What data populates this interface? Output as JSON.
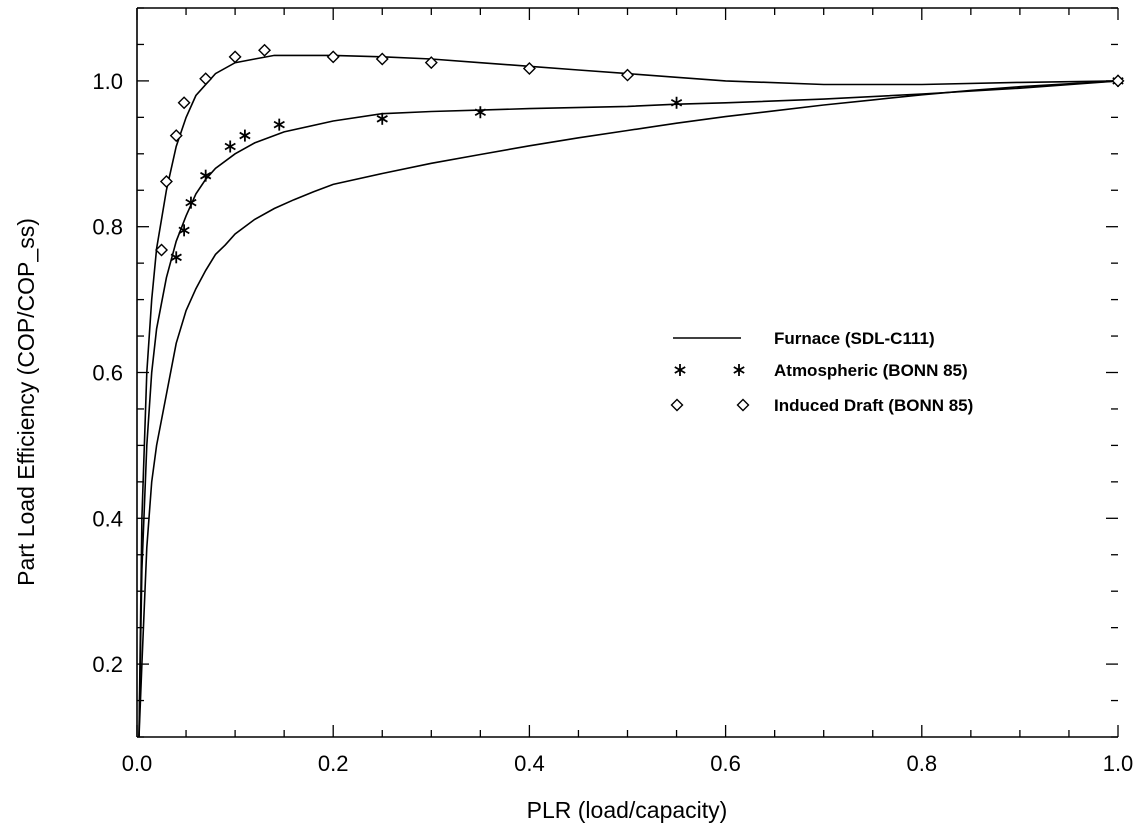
{
  "chart_data": {
    "type": "line",
    "title": "",
    "xlabel": "PLR (load/capacity)",
    "ylabel": "Part Load Efficiency (COP/COP_ss)",
    "xlim": [
      0.0,
      1.0
    ],
    "ylim": [
      0.1,
      1.1
    ],
    "x_ticks": [
      "0.0",
      "0.2",
      "0.4",
      "0.6",
      "0.8",
      "1.0"
    ],
    "y_ticks": [
      "0.2",
      "0.4",
      "0.6",
      "0.8",
      "1.0"
    ],
    "grid": false,
    "legend_position": "center-right",
    "legend": [
      {
        "label": "Furnace (SDL-C111)",
        "symbol": "line"
      },
      {
        "label": "Atmospheric (BONN 85)",
        "symbol": "star"
      },
      {
        "label": "Induced Draft (BONN 85)",
        "symbol": "diamond"
      }
    ],
    "series": [
      {
        "style": "line",
        "x": [
          0.002,
          0.005,
          0.01,
          0.015,
          0.02,
          0.03,
          0.04,
          0.05,
          0.06,
          0.07,
          0.08,
          0.09,
          0.1,
          0.12,
          0.14,
          0.16,
          0.18,
          0.2,
          0.25,
          0.3,
          0.35,
          0.4,
          0.45,
          0.5,
          0.55,
          0.6,
          0.65,
          0.7,
          0.75,
          0.8,
          0.85,
          0.9,
          0.95,
          1.0
        ],
        "y": [
          0.1,
          0.2,
          0.36,
          0.45,
          0.5,
          0.57,
          0.64,
          0.685,
          0.715,
          0.74,
          0.762,
          0.775,
          0.79,
          0.81,
          0.825,
          0.837,
          0.848,
          0.858,
          0.873,
          0.887,
          0.899,
          0.911,
          0.922,
          0.932,
          0.942,
          0.951,
          0.959,
          0.967,
          0.974,
          0.981,
          0.987,
          0.992,
          0.996,
          1.0
        ]
      },
      {
        "style": "line",
        "x": [
          0.002,
          0.005,
          0.01,
          0.015,
          0.02,
          0.03,
          0.04,
          0.05,
          0.06,
          0.07,
          0.08,
          0.1,
          0.12,
          0.15,
          0.2,
          0.25,
          0.3,
          0.35,
          0.4,
          0.5,
          0.55,
          0.6,
          0.7,
          0.8,
          0.9,
          1.0
        ],
        "y": [
          0.1,
          0.33,
          0.5,
          0.6,
          0.66,
          0.73,
          0.78,
          0.815,
          0.845,
          0.865,
          0.88,
          0.9,
          0.915,
          0.93,
          0.945,
          0.955,
          0.958,
          0.96,
          0.962,
          0.965,
          0.968,
          0.97,
          0.975,
          0.982,
          0.99,
          1.0
        ]
      },
      {
        "style": "line",
        "x": [
          0.002,
          0.005,
          0.01,
          0.015,
          0.02,
          0.03,
          0.04,
          0.05,
          0.06,
          0.08,
          0.1,
          0.12,
          0.14,
          0.16,
          0.2,
          0.25,
          0.3,
          0.35,
          0.4,
          0.45,
          0.5,
          0.55,
          0.6,
          0.7,
          0.8,
          0.9,
          1.0
        ],
        "y": [
          0.1,
          0.4,
          0.6,
          0.7,
          0.77,
          0.85,
          0.91,
          0.95,
          0.98,
          1.01,
          1.025,
          1.03,
          1.035,
          1.035,
          1.035,
          1.033,
          1.03,
          1.025,
          1.02,
          1.015,
          1.01,
          1.005,
          1.0,
          0.995,
          0.995,
          0.998,
          1.0
        ]
      },
      {
        "name": "Atmospheric (BONN 85)",
        "style": "star",
        "x": [
          0.04,
          0.048,
          0.055,
          0.07,
          0.095,
          0.11,
          0.145,
          0.25,
          0.35,
          0.55,
          1.0
        ],
        "y": [
          0.758,
          0.795,
          0.833,
          0.87,
          0.91,
          0.925,
          0.94,
          0.948,
          0.957,
          0.97,
          1.0
        ]
      },
      {
        "name": "Induced Draft (BONN 85)",
        "style": "diamond",
        "x": [
          0.025,
          0.03,
          0.04,
          0.048,
          0.07,
          0.1,
          0.13,
          0.2,
          0.25,
          0.3,
          0.4,
          0.5,
          1.0
        ],
        "y": [
          0.768,
          0.862,
          0.925,
          0.97,
          1.003,
          1.033,
          1.042,
          1.033,
          1.03,
          1.025,
          1.017,
          1.008,
          1.0
        ]
      }
    ]
  }
}
